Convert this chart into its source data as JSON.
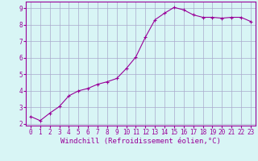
{
  "x": [
    0,
    1,
    2,
    3,
    4,
    5,
    6,
    7,
    8,
    9,
    10,
    11,
    12,
    13,
    14,
    15,
    16,
    17,
    18,
    19,
    20,
    21,
    22,
    23
  ],
  "y": [
    2.45,
    2.2,
    2.65,
    3.05,
    3.7,
    4.0,
    4.15,
    4.4,
    4.55,
    4.75,
    5.35,
    6.05,
    7.25,
    8.3,
    8.7,
    9.05,
    8.9,
    8.6,
    8.45,
    8.45,
    8.4,
    8.45,
    8.45,
    8.2
  ],
  "line_color": "#990099",
  "marker": "+",
  "marker_size": 3,
  "bg_color": "#d8f5f5",
  "grid_color": "#aaaacc",
  "xlabel": "Windchill (Refroidissement éolien,°C)",
  "xlabel_color": "#990099",
  "tick_color": "#990099",
  "spine_color": "#990099",
  "xlim": [
    -0.5,
    23.5
  ],
  "ylim": [
    1.9,
    9.4
  ],
  "yticks": [
    2,
    3,
    4,
    5,
    6,
    7,
    8,
    9
  ],
  "xticks": [
    0,
    1,
    2,
    3,
    4,
    5,
    6,
    7,
    8,
    9,
    10,
    11,
    12,
    13,
    14,
    15,
    16,
    17,
    18,
    19,
    20,
    21,
    22,
    23
  ],
  "tick_fontsize": 5.5,
  "xlabel_fontsize": 6.5,
  "linewidth": 0.8,
  "markeredgewidth": 0.8
}
